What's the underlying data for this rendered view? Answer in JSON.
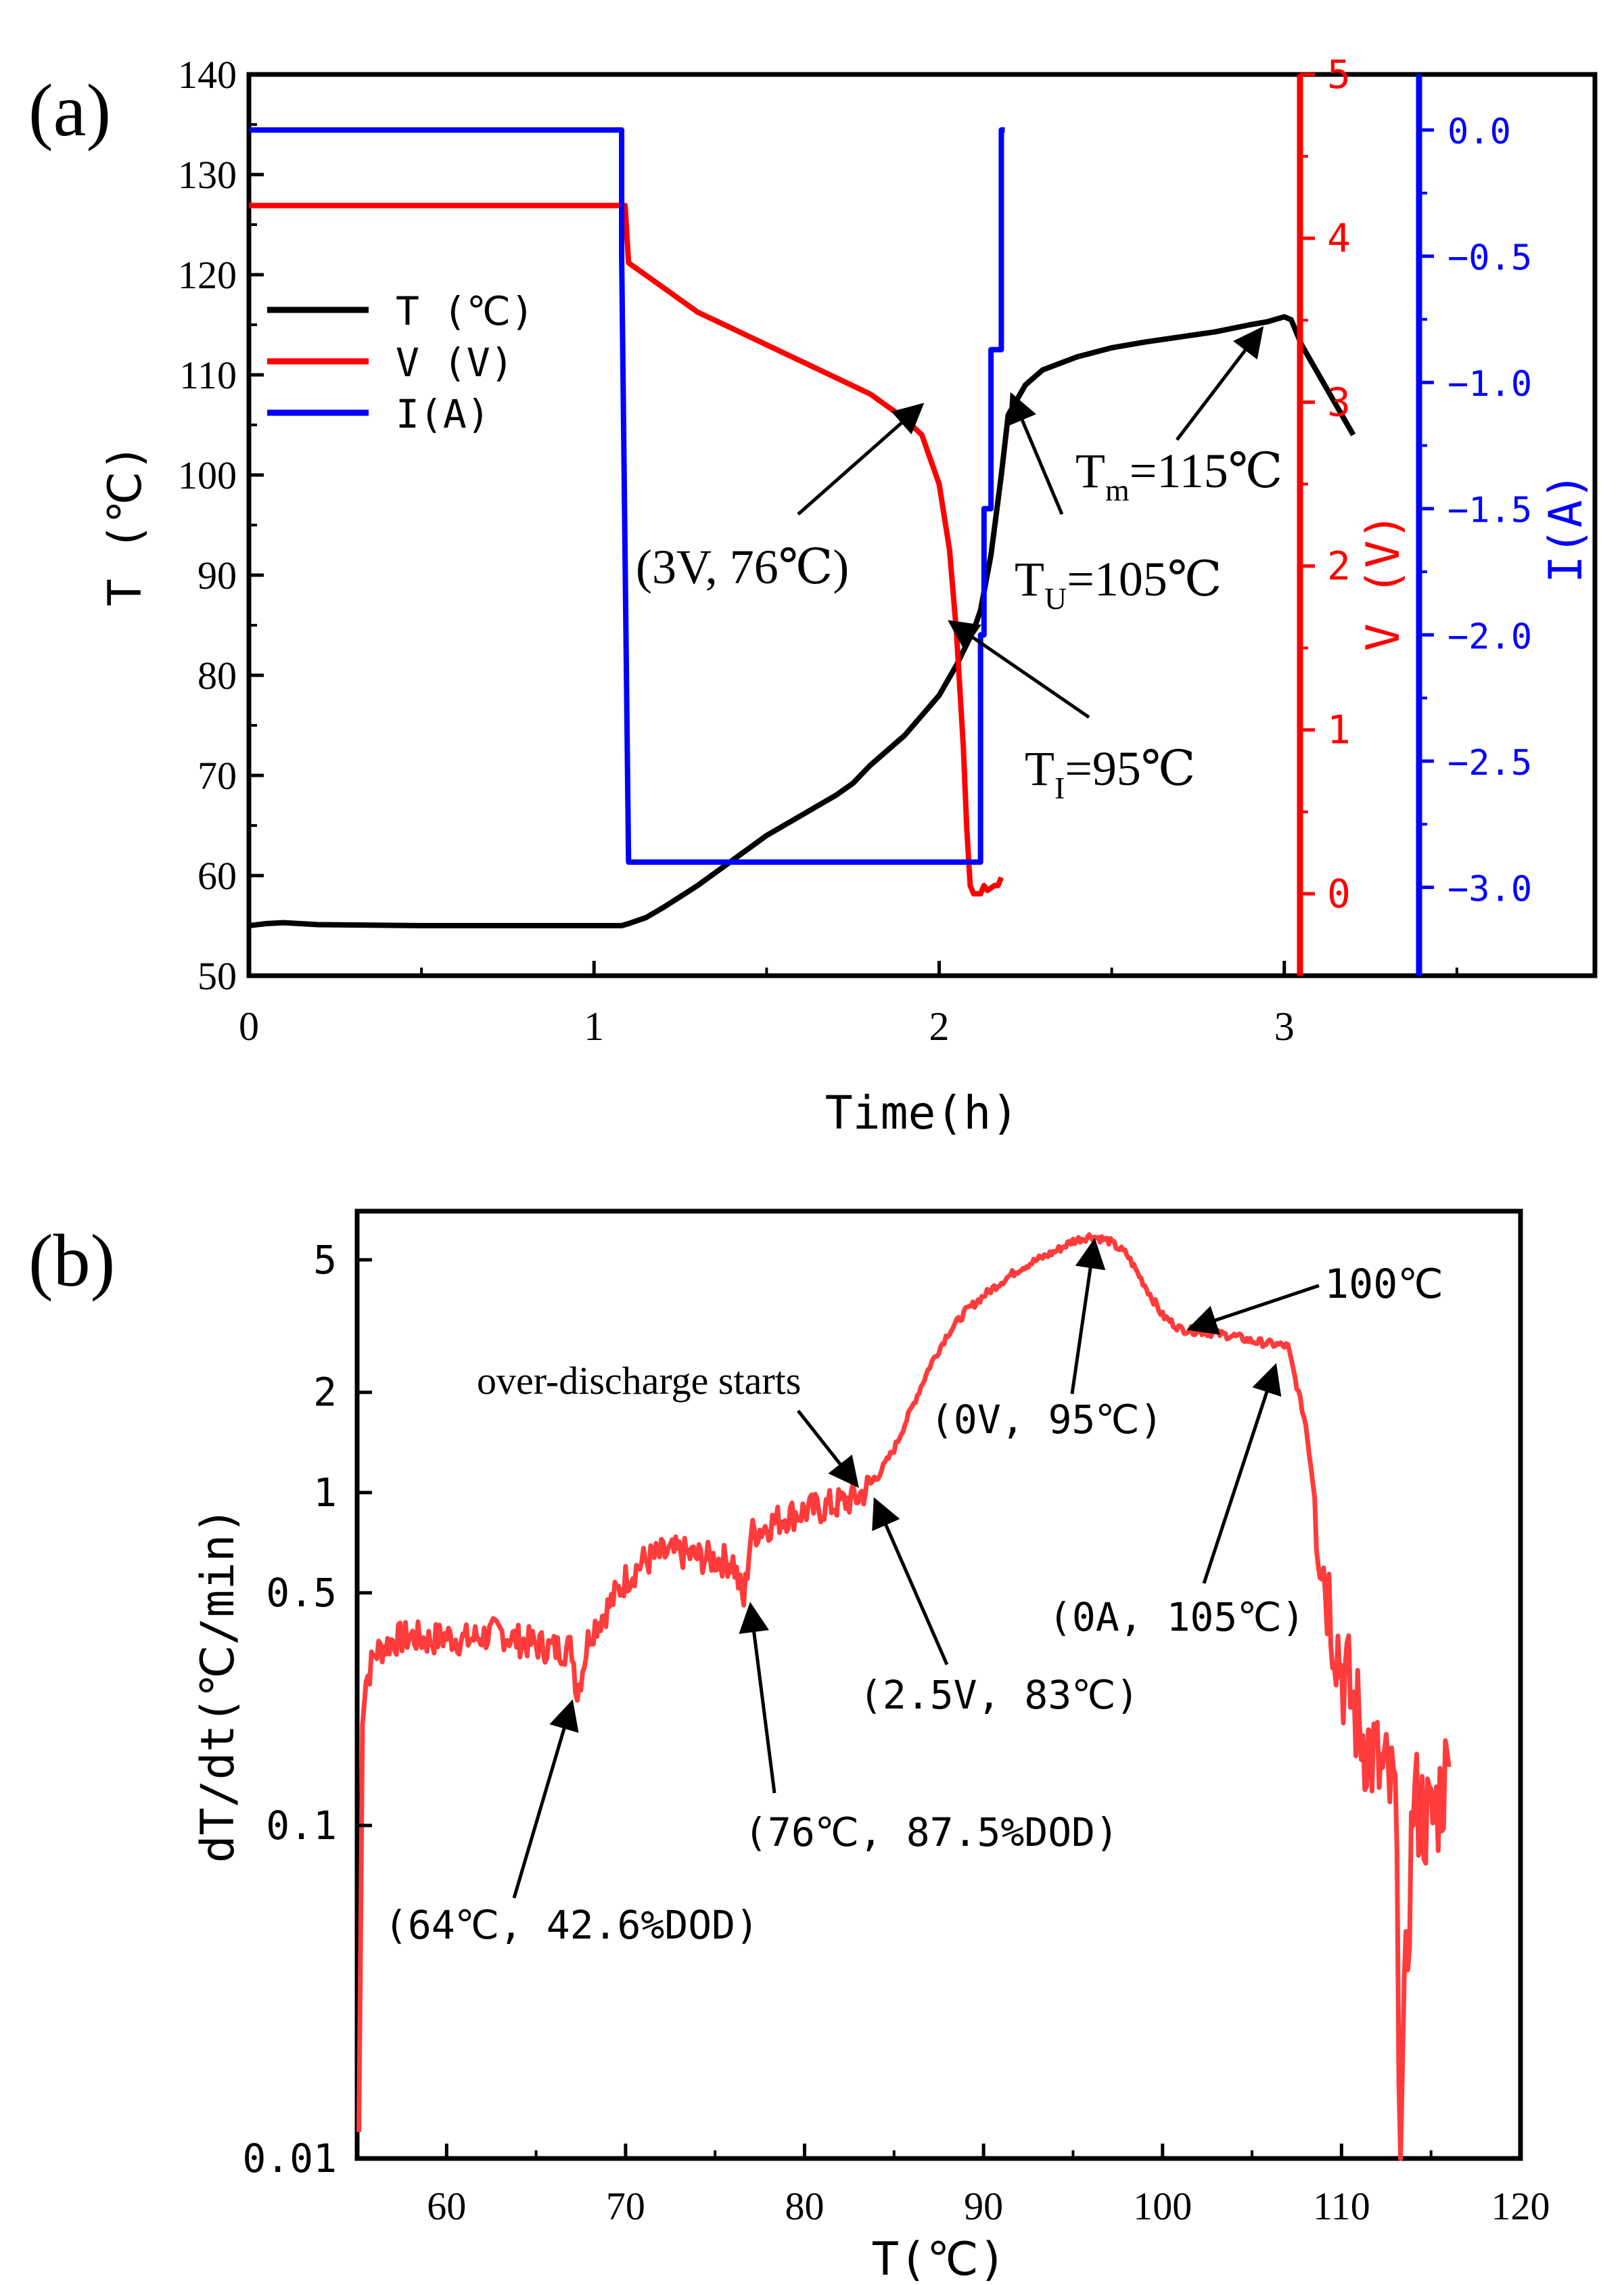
{
  "panel_a_label": "(a)",
  "panel_b_label": "(b)",
  "colors": {
    "temperature": "#000000",
    "voltage": "#ff0000",
    "current": "#0000ff",
    "rate": "#ff3b3b"
  },
  "chart_data": [
    {
      "type": "line",
      "xlabel": "Time(h)",
      "xlim": [
        0,
        3.9
      ],
      "x_ticks": [
        "0",
        "1",
        "2",
        "3"
      ],
      "axes": {
        "left": {
          "label": "T (℃)",
          "lim": [
            50,
            140
          ],
          "ticks": [
            "50",
            "60",
            "70",
            "80",
            "90",
            "100",
            "110",
            "120",
            "130",
            "140"
          ],
          "color": "#000000"
        },
        "right1": {
          "label": "V (V)",
          "lim": [
            -0.5,
            5
          ],
          "ticks": [
            "0",
            "1",
            "2",
            "3",
            "4",
            "5"
          ],
          "color": "#ff0000"
        },
        "right2": {
          "label": "I(A)",
          "lim": [
            -3.35,
            0.22
          ],
          "ticks": [
            "0.0",
            "−0.5",
            "−1.0",
            "−1.5",
            "−2.0",
            "−2.5",
            "−3.0"
          ],
          "color": "#0000ff"
        }
      },
      "legend": {
        "position": "upper-left",
        "entries": [
          "T (℃)",
          "V (V)",
          "I(A)"
        ]
      },
      "series": [
        {
          "name": "T (℃)",
          "axis": "left",
          "x": [
            0,
            0.05,
            0.1,
            0.2,
            0.5,
            0.8,
            1.0,
            1.08,
            1.1,
            1.15,
            1.2,
            1.3,
            1.4,
            1.5,
            1.6,
            1.7,
            1.75,
            1.8,
            1.9,
            2.0,
            2.05,
            2.1,
            2.12,
            2.15,
            2.18,
            2.2,
            2.25,
            2.3,
            2.4,
            2.5,
            2.6,
            2.7,
            2.8,
            2.9,
            2.95,
            3.0,
            3.02,
            3.05,
            3.1,
            3.2
          ],
          "y": [
            55,
            55.2,
            55.3,
            55.1,
            55.0,
            55.0,
            55.0,
            55.0,
            55.2,
            55.8,
            56.8,
            59,
            61.5,
            64,
            66,
            68,
            69.2,
            71,
            74,
            78,
            81,
            84.5,
            86.5,
            92,
            100,
            106,
            109,
            110.5,
            111.8,
            112.7,
            113.3,
            113.8,
            114.3,
            115,
            115.3,
            115.8,
            115.5,
            113,
            110,
            104
          ]
        },
        {
          "name": "V (V)",
          "axis": "right1",
          "x": [
            0,
            0.5,
            1.0,
            1.08,
            1.09,
            1.1,
            1.2,
            1.3,
            1.4,
            1.5,
            1.6,
            1.7,
            1.8,
            1.9,
            1.95,
            2.0,
            2.03,
            2.05,
            2.07,
            2.08,
            2.09,
            2.1,
            2.11,
            2.12,
            2.13,
            2.14,
            2.16,
            2.17,
            2.18
          ],
          "y": [
            4.2,
            4.2,
            4.2,
            4.2,
            4.2,
            3.85,
            3.7,
            3.55,
            3.45,
            3.35,
            3.25,
            3.15,
            3.05,
            2.9,
            2.8,
            2.5,
            2.1,
            1.6,
            0.9,
            0.4,
            0.05,
            0.0,
            0.0,
            0.0,
            0.05,
            0.02,
            0.05,
            0.05,
            0.1
          ]
        },
        {
          "name": "I(A)",
          "axis": "right2",
          "x": [
            0,
            1.08,
            1.08,
            1.1,
            2.1,
            2.12,
            2.12,
            2.13,
            2.13,
            2.15,
            2.15,
            2.17,
            2.17,
            2.18,
            2.18,
            2.19
          ],
          "y": [
            0,
            0,
            -0.5,
            -2.9,
            -2.9,
            -2.9,
            -2.0,
            -2.0,
            -1.5,
            -1.5,
            -0.87,
            -0.87,
            -0.87,
            -0.87,
            0,
            0
          ]
        }
      ],
      "annotations": [
        {
          "text": "(3V, 76℃)",
          "x": 1.95,
          "y": 107
        },
        {
          "text": "T",
          "sub": "U",
          "value": "=105℃",
          "x": 2.2,
          "y": 108
        },
        {
          "text": "T",
          "sub": "m",
          "value": "=115℃",
          "x": 2.97,
          "y": 115.3
        },
        {
          "text": "T",
          "sub": "I",
          "value": "=95℃",
          "x": 2.12,
          "y": 85
        }
      ]
    },
    {
      "type": "line",
      "xlabel": "T(℃)",
      "ylabel": "dT/dt(℃/min)",
      "xlim": [
        55,
        120
      ],
      "ylim": [
        0.01,
        7
      ],
      "yscale": "log",
      "x_ticks": [
        "60",
        "70",
        "80",
        "90",
        "100",
        "110",
        "120"
      ],
      "y_ticks": [
        "0.01",
        "0.1",
        "0.5",
        "1",
        "2",
        "5"
      ],
      "series": [
        {
          "name": "dT/dt",
          "x": [
            55.1,
            55.3,
            55.5,
            56,
            57,
            58,
            59,
            60,
            61,
            62,
            63,
            64,
            65,
            66,
            67,
            67.3,
            68,
            69,
            70,
            71,
            72,
            73,
            74,
            75,
            76,
            76.6,
            77,
            78,
            79,
            80,
            81,
            82,
            83,
            84,
            85,
            86,
            87,
            88,
            89,
            90,
            91,
            92,
            93,
            94,
            95,
            96,
            97,
            98,
            99,
            100,
            101,
            102,
            103,
            104,
            105,
            106,
            107,
            108,
            109,
            110,
            111,
            112,
            113,
            113.3,
            114,
            115,
            116
          ],
          "y": [
            0.012,
            0.2,
            0.27,
            0.33,
            0.36,
            0.37,
            0.36,
            0.37,
            0.36,
            0.37,
            0.38,
            0.36,
            0.35,
            0.34,
            0.34,
            0.25,
            0.38,
            0.45,
            0.55,
            0.62,
            0.65,
            0.66,
            0.64,
            0.63,
            0.62,
            0.47,
            0.75,
            0.8,
            0.85,
            0.88,
            0.9,
            0.93,
            0.97,
            1.1,
            1.35,
            1.8,
            2.4,
            3.0,
            3.5,
            3.9,
            4.3,
            4.7,
            5.0,
            5.3,
            5.7,
            5.9,
            5.7,
            5.2,
            4.2,
            3.4,
            3.1,
            3.05,
            3.0,
            2.95,
            2.85,
            2.8,
            2.75,
            1.6,
            0.6,
            0.3,
            0.2,
            0.15,
            0.12,
            0.012,
            0.12,
            0.1,
            0.15
          ]
        }
      ],
      "annotations": [
        {
          "text": "100℃",
          "x": 101.5,
          "y": 3.1
        },
        {
          "text": "over-discharge starts",
          "x": 83.5,
          "y": 1.05
        },
        {
          "text": "(0V, 95℃)",
          "x": 96,
          "y": 5.7
        },
        {
          "text": "(0A, 105℃)",
          "x": 106,
          "y": 2.4
        },
        {
          "text": "(2.5V, 83℃)",
          "x": 84.5,
          "y": 0.95
        },
        {
          "text": "(76℃, 87.5%DOD)",
          "x": 76.6,
          "y": 0.46
        },
        {
          "text": "(64℃, 42.6%DOD)",
          "x": 67.3,
          "y": 0.24
        }
      ]
    }
  ]
}
